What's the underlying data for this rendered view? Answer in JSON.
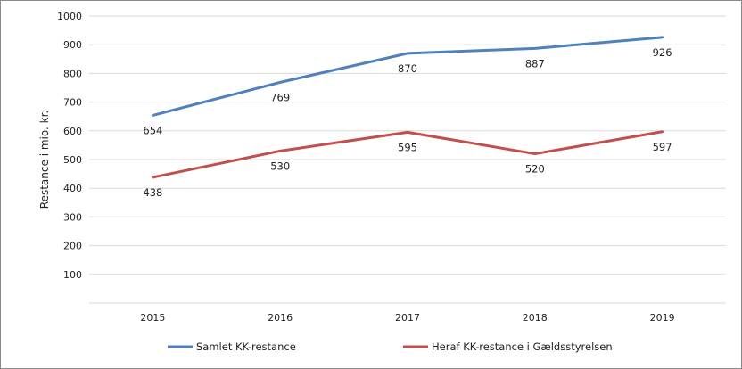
{
  "chart_data": {
    "type": "line",
    "ylabel": "Restance i mio. kr.",
    "xlabel": "",
    "title": "",
    "ylim": [
      0,
      1000
    ],
    "yticks": [
      100,
      200,
      300,
      400,
      500,
      600,
      700,
      800,
      900,
      1000
    ],
    "categories": [
      "2015",
      "2016",
      "2017",
      "2018",
      "2019"
    ],
    "grid": true,
    "legend_position": "bottom",
    "series": [
      {
        "name": "Samlet KK-restance",
        "color": "#4f81bd",
        "values": [
          654,
          769,
          870,
          887,
          926
        ]
      },
      {
        "name": "Heraf KK-restance i Gældsstyrelsen",
        "color": "#c0504d",
        "values": [
          438,
          530,
          595,
          520,
          597
        ]
      }
    ]
  }
}
